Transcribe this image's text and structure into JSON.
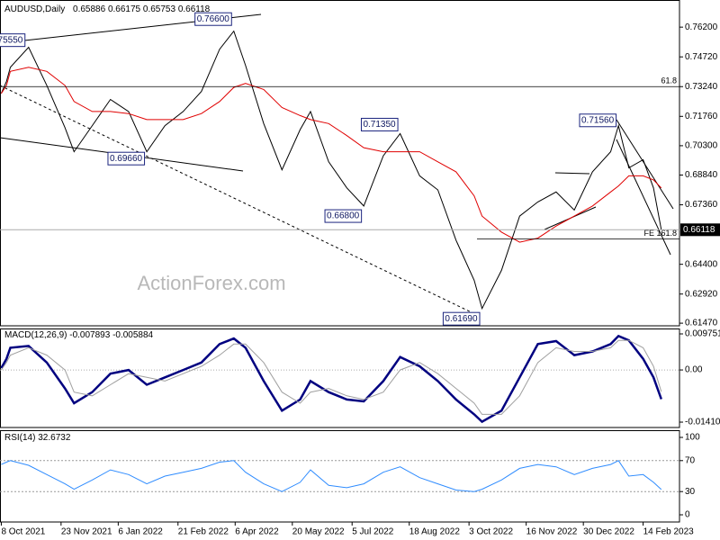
{
  "chart_data": [
    {
      "type": "line",
      "title": "AUDUSD,Daily",
      "open": 0.65886,
      "high": 0.66175,
      "low": 0.65753,
      "watermark": "ActionForex.com",
      "x": [
        "8 Oct 2021",
        "12 Oct 2021",
        "15 Oct 2021",
        "29 Oct 2021",
        "12 Nov 2021",
        "26 Nov 2021",
        "3 Dec 2021",
        "17 Dec 2021",
        "31 Dec 2021",
        "14 Jan 2022",
        "28 Jan 2022",
        "11 Feb 2022",
        "25 Feb 2022",
        "11 Mar 2022",
        "25 Mar 2022",
        "5 Apr 2022",
        "14 Apr 2022",
        "28 Apr 2022",
        "12 May 2022",
        "26 May 2022",
        "3 Jun 2022",
        "17 Jun 2022",
        "1 Jul 2022",
        "14 Jul 2022",
        "29 Jul 2022",
        "11 Aug 2022",
        "26 Aug 2022",
        "9 Sep 2022",
        "23 Sep 2022",
        "7 Oct 2022",
        "13 Oct 2022",
        "28 Oct 2022",
        "11 Nov 2022",
        "25 Nov 2022",
        "9 Dec 2022",
        "23 Dec 2022",
        "6 Jan 2023",
        "20 Jan 2023",
        "26 Jan 2023",
        "3 Feb 2023",
        "14 Feb 2023",
        "22 Feb 2023",
        "28 Feb 2023"
      ],
      "xlim": [
        "7 Oct 2021",
        "14 Mar 2023"
      ],
      "series": [
        {
          "name": "AUDUSD",
          "color": "#000000",
          "values": [
            0.729,
            0.735,
            0.742,
            0.752,
            0.733,
            0.712,
            0.7,
            0.713,
            0.726,
            0.72,
            0.7,
            0.713,
            0.72,
            0.73,
            0.751,
            0.76,
            0.743,
            0.714,
            0.691,
            0.711,
            0.72,
            0.695,
            0.682,
            0.673,
            0.698,
            0.709,
            0.688,
            0.681,
            0.656,
            0.636,
            0.622,
            0.641,
            0.668,
            0.675,
            0.68,
            0.671,
            0.69,
            0.7,
            0.713,
            0.692,
            0.696,
            0.682,
            0.66118
          ]
        },
        {
          "name": "MA",
          "color": "#e00000",
          "values": [
            0.729,
            0.733,
            0.74,
            0.742,
            0.74,
            0.733,
            0.725,
            0.72,
            0.72,
            0.719,
            0.716,
            0.716,
            0.716,
            0.719,
            0.725,
            0.732,
            0.734,
            0.731,
            0.722,
            0.718,
            0.716,
            0.714,
            0.708,
            0.702,
            0.7,
            0.7,
            0.7,
            0.695,
            0.69,
            0.678,
            0.668,
            0.66,
            0.655,
            0.657,
            0.663,
            0.668,
            0.673,
            0.68,
            0.683,
            0.688,
            0.688,
            0.686,
            0.682
          ]
        }
      ],
      "ylim": [
        0.6134,
        0.7755
      ],
      "yticks": [
        {
          "value": 0.762,
          "label": "0.76200"
        },
        {
          "value": 0.7472,
          "label": "0.74720"
        },
        {
          "value": 0.7324,
          "label": "0.73240"
        },
        {
          "value": 0.7176,
          "label": "0.71760"
        },
        {
          "value": 0.703,
          "label": "0.70300"
        },
        {
          "value": 0.6884,
          "label": "0.68840"
        },
        {
          "value": 0.6736,
          "label": "0.67360"
        },
        {
          "value": 0.644,
          "label": "0.64400"
        },
        {
          "value": 0.6292,
          "label": "0.62920"
        },
        {
          "value": 0.6147,
          "label": "0.61470"
        }
      ],
      "annotations": [
        {
          "text": "0.75550",
          "x": "28 Oct 2021",
          "value": 0.7555
        },
        {
          "text": "0.76600",
          "x": "5 Apr 2022",
          "value": 0.766
        },
        {
          "text": "0.69660",
          "x": "28 Jan 2022",
          "value": 0.6966
        },
        {
          "text": "0.71350",
          "x": "11 Aug 2022",
          "value": 0.7135
        },
        {
          "text": "0.66800",
          "x": "14 Jul 2022",
          "value": 0.668
        },
        {
          "text": "0.61690",
          "x": "13 Oct 2022",
          "value": 0.6169
        },
        {
          "text": "0.71560",
          "x": "26 Jan 2023",
          "value": 0.7156
        }
      ],
      "levels": [
        {
          "label": "61.8",
          "value": 0.7324
        },
        {
          "label": "FE 161.8",
          "value": 0.6566
        }
      ]
    },
    {
      "type": "line",
      "title": "MACD(12,26,9)",
      "series": [
        {
          "name": "MACD",
          "color": "#000080",
          "values": [
            0.0005,
            0.003,
            0.006,
            0.0065,
            0.002,
            -0.005,
            -0.009,
            -0.006,
            -0.001,
            0.0,
            -0.004,
            -0.002,
            0.0,
            0.002,
            0.007,
            0.0085,
            0.006,
            -0.003,
            -0.011,
            -0.008,
            -0.003,
            -0.006,
            -0.008,
            -0.0085,
            -0.003,
            0.0035,
            0.001,
            -0.003,
            -0.008,
            -0.012,
            -0.014,
            -0.011,
            -0.002,
            0.007,
            0.0078,
            0.004,
            0.005,
            0.007,
            0.0092,
            0.008,
            0.003,
            -0.002,
            -0.007893
          ]
        },
        {
          "name": "Signal",
          "color": "#a0a0a0",
          "values": [
            0.0,
            0.002,
            0.004,
            0.006,
            0.004,
            0.0,
            -0.006,
            -0.007,
            -0.004,
            -0.001,
            -0.002,
            -0.003,
            -0.001,
            0.001,
            0.004,
            0.007,
            0.007,
            0.002,
            -0.006,
            -0.009,
            -0.006,
            -0.005,
            -0.007,
            -0.008,
            -0.006,
            0.0,
            0.002,
            -0.001,
            -0.005,
            -0.009,
            -0.012,
            -0.012,
            -0.007,
            0.002,
            0.006,
            0.005,
            0.005,
            0.006,
            0.008,
            0.008,
            0.006,
            0.001,
            -0.005884
          ]
        }
      ],
      "ylim": [
        -0.01556,
        0.01121
      ],
      "yticks": [
        0.009751,
        {
          "value": 0,
          "label": "0.00"
        },
        -0.014107
      ]
    },
    {
      "type": "line",
      "title": "RSI(14)",
      "series": [
        {
          "name": "RSI",
          "color": "#2f8cff",
          "values": [
            65,
            68,
            70,
            64,
            52,
            40,
            33,
            45,
            58,
            52,
            40,
            50,
            55,
            60,
            68,
            70,
            55,
            40,
            30,
            42,
            58,
            38,
            35,
            40,
            55,
            62,
            48,
            40,
            32,
            30,
            33,
            45,
            60,
            65,
            62,
            52,
            60,
            65,
            70,
            50,
            52,
            42,
            32.6732
          ]
        }
      ],
      "ylim": [
        -9.3,
        109.3
      ],
      "yticks": [
        100,
        70,
        30,
        0
      ],
      "guides": [
        70,
        30
      ],
      "xticks": [
        "8 Oct 2021",
        "23 Nov 2021",
        "6 Jan 2022",
        "21 Feb 2022",
        "6 Apr 2022",
        "20 May 2022",
        "5 Jul 2022",
        "18 Aug 2022",
        "3 Oct 2022",
        "16 Nov 2022",
        "30 Dec 2022",
        "14 Feb 2023"
      ]
    }
  ]
}
